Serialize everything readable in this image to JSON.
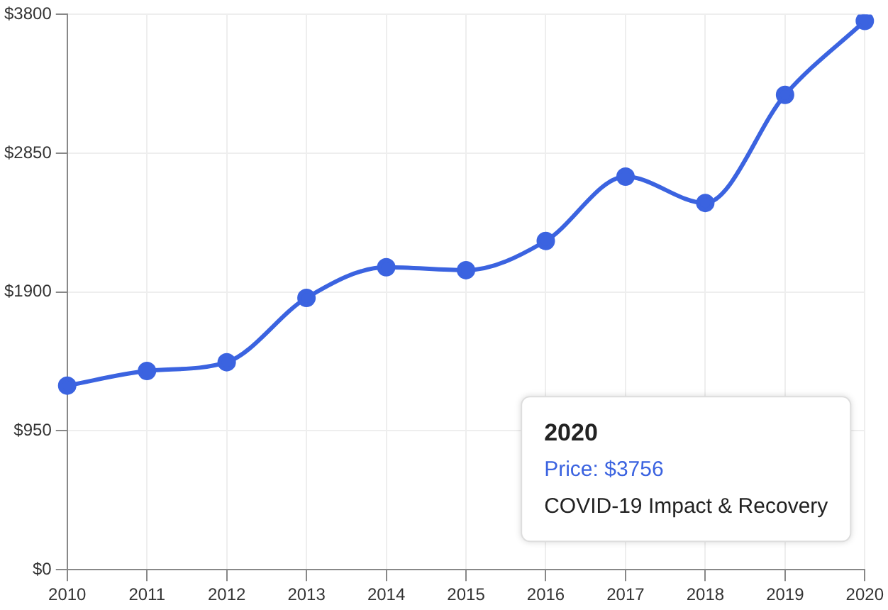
{
  "chart_data": {
    "type": "line",
    "categories": [
      "2010",
      "2011",
      "2012",
      "2013",
      "2014",
      "2015",
      "2016",
      "2017",
      "2018",
      "2019",
      "2020"
    ],
    "series": [
      {
        "color": "#3b63e0",
        "values": [
          1260,
          1360,
          1420,
          1860,
          2070,
          2050,
          2250,
          2690,
          2510,
          3250,
          3756
        ]
      }
    ],
    "ylim": [
      0,
      3800
    ],
    "yticks": [
      {
        "value": 0,
        "label": "$0"
      },
      {
        "value": 950,
        "label": "$950"
      },
      {
        "value": 1900,
        "label": "$1900"
      },
      {
        "value": 2850,
        "label": "$2850"
      },
      {
        "value": 3800,
        "label": "$3800"
      }
    ],
    "grid": true,
    "legend": false,
    "marker": "circle",
    "line_style": "solid",
    "annotations": [
      "2020\nPrice: $3756\nCOVID-19 Impact & Recovery"
    ]
  }
}
